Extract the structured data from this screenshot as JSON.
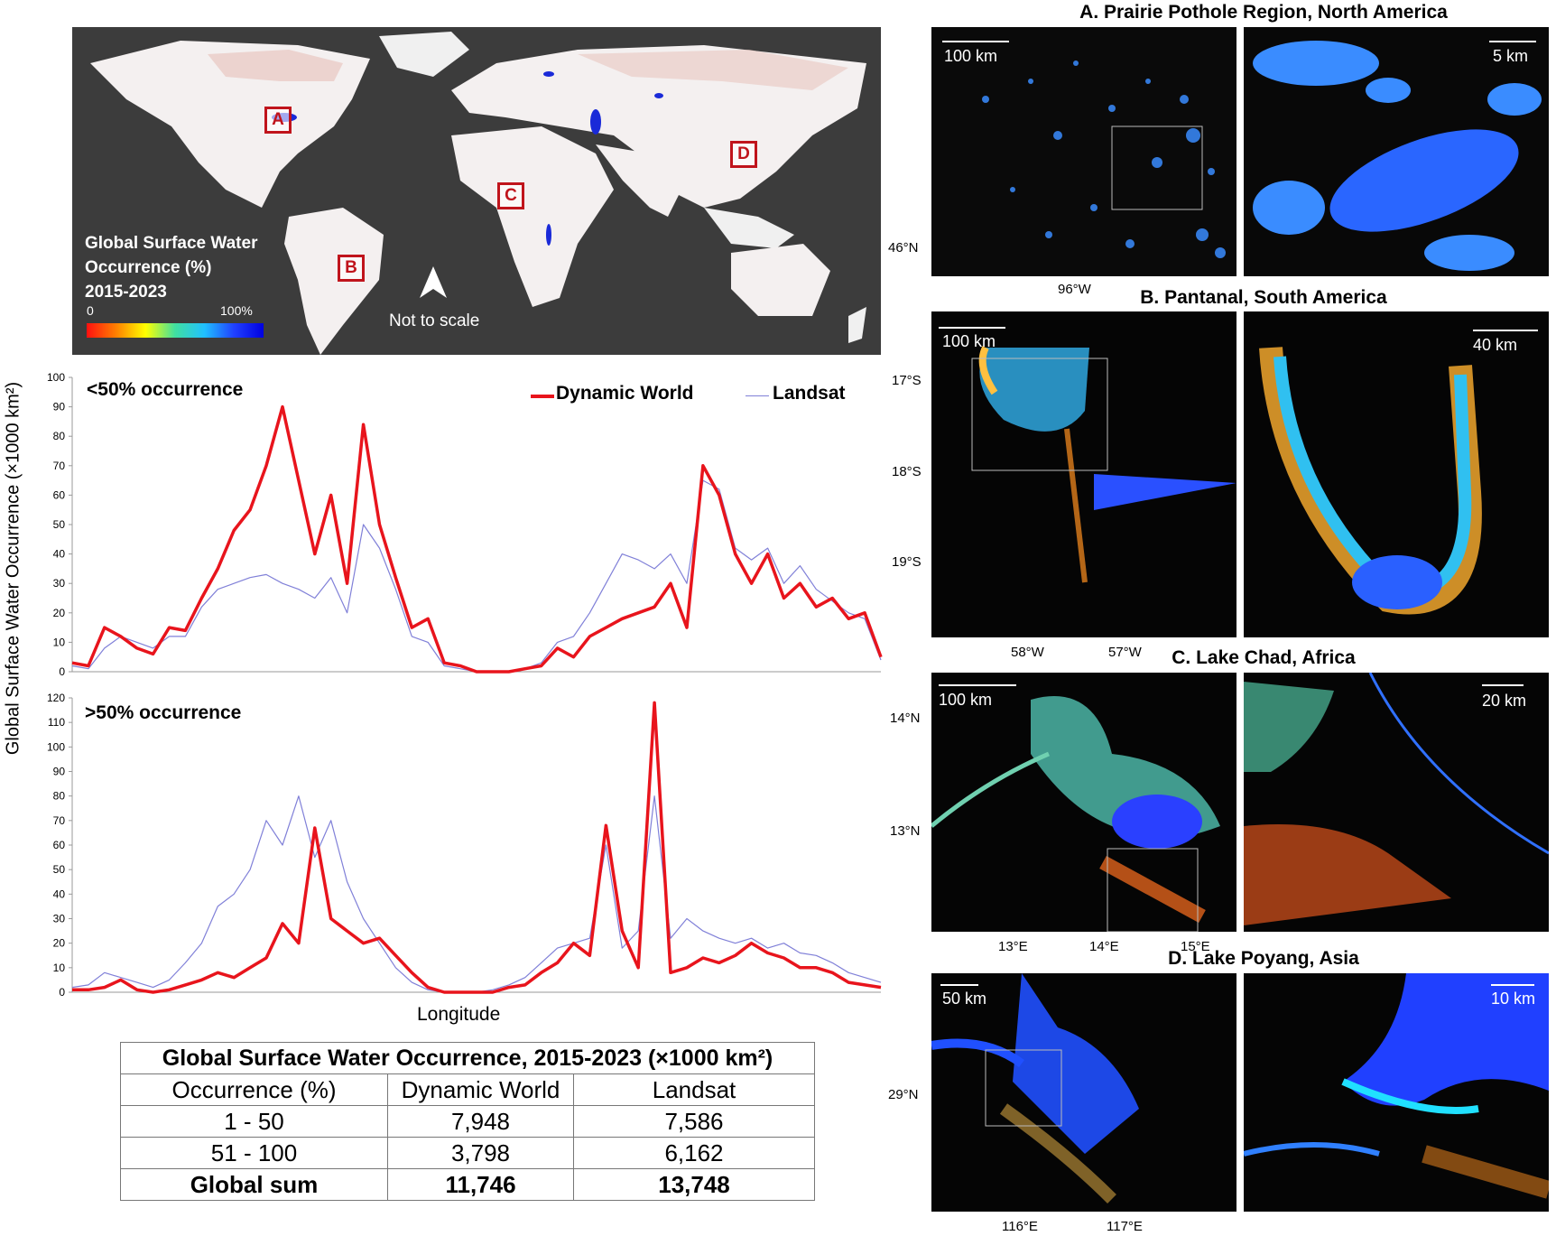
{
  "map": {
    "title_lines": [
      "Global Surface Water",
      "Occurrence (%)",
      "2015-2023"
    ],
    "colorbar_min": "0",
    "colorbar_max": "100%",
    "note": "Not to scale",
    "regions": [
      "A",
      "B",
      "C",
      "D"
    ]
  },
  "chart_data": [
    {
      "type": "line",
      "title": "<50% occurrence",
      "xlabel": "",
      "ylabel": "Global Surface Water Occurrence (×1000 km²)",
      "ylim": [
        0,
        100
      ],
      "yticks": [
        "0",
        "10",
        "20",
        "30",
        "40",
        "50",
        "60",
        "70",
        "80",
        "90",
        "100"
      ],
      "x_index": [
        0,
        2,
        4,
        6,
        8,
        10,
        12,
        14,
        16,
        18,
        20,
        22,
        24,
        26,
        28,
        30,
        32,
        34,
        36,
        38,
        40,
        42,
        44,
        46,
        48,
        50,
        52,
        54,
        56,
        58,
        60,
        62,
        64,
        66,
        68,
        70,
        72,
        74,
        76,
        78,
        80,
        82,
        84,
        86,
        88,
        90,
        92,
        94,
        96,
        98,
        100
      ],
      "series": [
        {
          "name": "Dynamic World",
          "color": "#e8141c",
          "values": [
            3,
            2,
            15,
            12,
            8,
            6,
            15,
            14,
            25,
            35,
            48,
            55,
            70,
            90,
            65,
            40,
            60,
            30,
            84,
            50,
            32,
            15,
            18,
            3,
            2,
            0,
            0,
            0,
            1,
            2,
            8,
            5,
            12,
            15,
            18,
            20,
            22,
            30,
            15,
            70,
            60,
            40,
            30,
            40,
            25,
            30,
            22,
            25,
            18,
            20,
            5
          ]
        },
        {
          "name": "Landsat",
          "color": "#8080d8",
          "values": [
            2,
            1,
            8,
            12,
            10,
            8,
            12,
            12,
            22,
            28,
            30,
            32,
            33,
            30,
            28,
            25,
            32,
            20,
            50,
            42,
            28,
            12,
            10,
            2,
            1,
            0,
            0,
            0,
            1,
            3,
            10,
            12,
            20,
            30,
            40,
            38,
            35,
            40,
            30,
            65,
            62,
            42,
            38,
            42,
            30,
            36,
            28,
            24,
            20,
            18,
            4
          ]
        }
      ]
    },
    {
      "type": "line",
      "title": ">50% occurrence",
      "xlabel": "Longitude",
      "ylabel": "",
      "ylim": [
        0,
        120
      ],
      "yticks": [
        "0",
        "10",
        "20",
        "30",
        "40",
        "50",
        "60",
        "70",
        "80",
        "90",
        "100",
        "110",
        "120"
      ],
      "x_index": [
        0,
        2,
        4,
        6,
        8,
        10,
        12,
        14,
        16,
        18,
        20,
        22,
        24,
        26,
        28,
        30,
        32,
        34,
        36,
        38,
        40,
        42,
        44,
        46,
        48,
        50,
        52,
        54,
        56,
        58,
        60,
        62,
        64,
        66,
        68,
        70,
        72,
        74,
        76,
        78,
        80,
        82,
        84,
        86,
        88,
        90,
        92,
        94,
        96,
        98,
        100
      ],
      "series": [
        {
          "name": "Dynamic World",
          "color": "#e8141c",
          "values": [
            1,
            1,
            2,
            5,
            1,
            0,
            1,
            3,
            5,
            8,
            6,
            10,
            14,
            28,
            20,
            67,
            30,
            25,
            20,
            22,
            15,
            8,
            2,
            0,
            0,
            0,
            0,
            2,
            3,
            8,
            12,
            20,
            15,
            68,
            25,
            10,
            118,
            8,
            10,
            14,
            12,
            15,
            20,
            16,
            14,
            10,
            10,
            8,
            4,
            3,
            2
          ]
        },
        {
          "name": "Landsat",
          "color": "#8080d8",
          "values": [
            2,
            3,
            8,
            6,
            4,
            2,
            5,
            12,
            20,
            35,
            40,
            50,
            70,
            60,
            80,
            55,
            70,
            45,
            30,
            20,
            10,
            4,
            1,
            0,
            0,
            0,
            1,
            3,
            6,
            12,
            18,
            20,
            22,
            60,
            18,
            25,
            80,
            22,
            30,
            25,
            22,
            20,
            22,
            18,
            20,
            16,
            15,
            12,
            8,
            6,
            4
          ]
        }
      ]
    }
  ],
  "legend": {
    "dw": "Dynamic World",
    "landsat": "Landsat"
  },
  "table": {
    "title": "Global Surface Water Occurrence, 2015-2023 (×1000 km²)",
    "headers": [
      "Occurrence (%)",
      "Dynamic World",
      "Landsat"
    ],
    "rows": [
      [
        "1 - 50",
        "7,948",
        "7,586"
      ],
      [
        "51 - 100",
        "3,798",
        "6,162"
      ]
    ],
    "sum_row": [
      "Global sum",
      "11,746",
      "13,748"
    ]
  },
  "panels": [
    {
      "title": "A. Prairie Pothole Region, North America",
      "scale_left": "100 km",
      "scale_right": "5 km",
      "yticks": [
        "46°N"
      ],
      "xticks": [
        "96°W"
      ]
    },
    {
      "title": "B. Pantanal, South America",
      "scale_left": "100 km",
      "scale_right": "40 km",
      "yticks": [
        "17°S",
        "18°S",
        "19°S"
      ],
      "xticks": [
        "58°W",
        "57°W"
      ]
    },
    {
      "title": "C. Lake Chad, Africa",
      "scale_left": "100 km",
      "scale_right": "20 km",
      "yticks": [
        "14°N",
        "13°N"
      ],
      "xticks": [
        "13°E",
        "14°E",
        "15°E"
      ]
    },
    {
      "title": "D. Lake Poyang, Asia",
      "scale_left": "50 km",
      "scale_right": "10 km",
      "yticks": [
        "29°N"
      ],
      "xticks": [
        "116°E",
        "117°E"
      ]
    }
  ]
}
